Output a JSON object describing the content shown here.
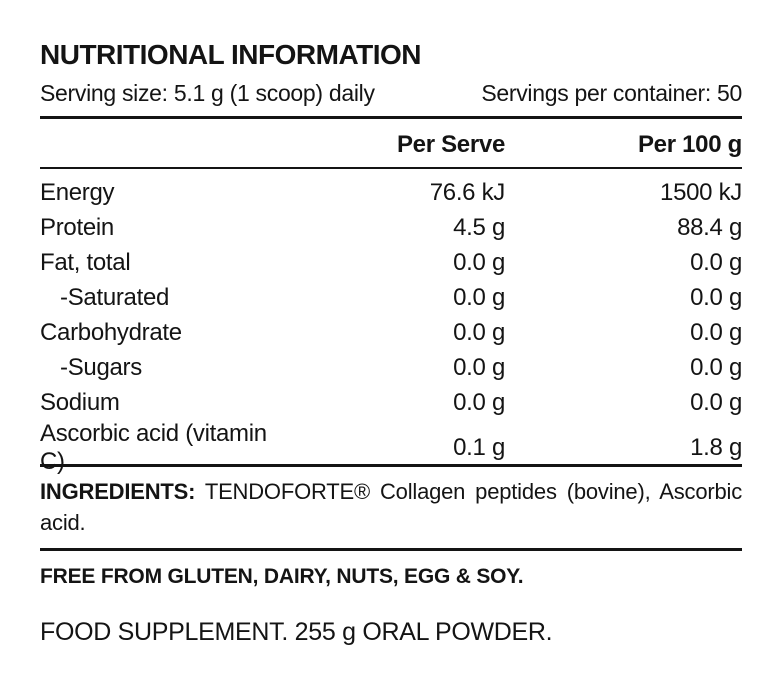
{
  "label": {
    "title": "NUTRITIONAL INFORMATION",
    "serving_size": "Serving size: 5.1 g (1 scoop) daily",
    "servings_per_container": "Servings per container: 50",
    "columns": {
      "per_serve": "Per Serve",
      "per_100g": "Per 100 g"
    },
    "rows": [
      {
        "name": "Energy",
        "per_serve": "76.6 kJ",
        "per_100g": "1500 kJ"
      },
      {
        "name": "Protein",
        "per_serve": "4.5 g",
        "per_100g": "88.4 g"
      },
      {
        "name": "Fat, total",
        "per_serve": "0.0 g",
        "per_100g": "0.0 g"
      },
      {
        "name": "-Saturated",
        "per_serve": "0.0 g",
        "per_100g": "0.0 g"
      },
      {
        "name": "Carbohydrate",
        "per_serve": "0.0 g",
        "per_100g": "0.0 g"
      },
      {
        "name": "-Sugars",
        "per_serve": "0.0 g",
        "per_100g": "0.0 g"
      },
      {
        "name": "Sodium",
        "per_serve": "0.0 g",
        "per_100g": "0.0 g"
      },
      {
        "name": "Ascorbic acid (vitamin C)",
        "per_serve": "0.1 g",
        "per_100g": "1.8 g"
      }
    ],
    "ingredients_label": "INGREDIENTS:",
    "ingredients_text": "TENDOFORTE® Collagen peptides (bovine), Ascorbic acid.",
    "free_from": "FREE FROM GLUTEN, DAIRY, NUTS, EGG & SOY.",
    "supplement_info": "FOOD SUPPLEMENT. 255 g ORAL POWDER.",
    "colors": {
      "text": "#141414",
      "background": "#ffffff",
      "rule": "#141414"
    }
  }
}
